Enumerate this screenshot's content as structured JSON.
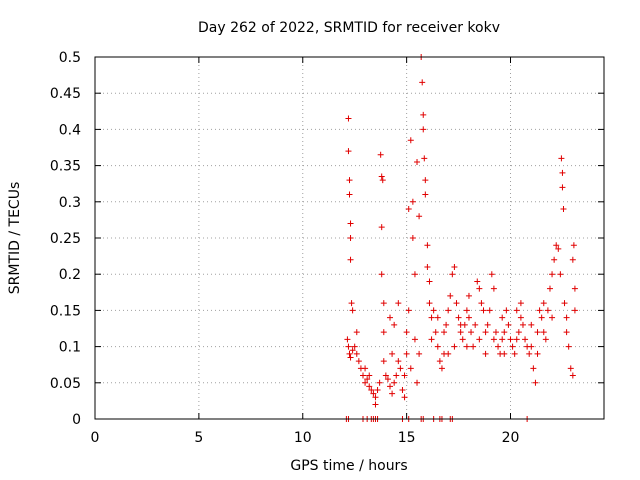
{
  "chart_data": {
    "type": "scatter",
    "title": "Day 262 of 2022, SRMTID for receiver kokv",
    "xlabel": "GPS time / hours",
    "ylabel": "SRMTID / TECUs",
    "xlim": [
      0,
      24.5
    ],
    "ylim": [
      0,
      0.5
    ],
    "x_ticks": [
      0,
      5,
      10,
      15,
      20
    ],
    "x_tick_labels": [
      "0",
      "5",
      "10",
      "15",
      "20"
    ],
    "y_ticks": [
      0,
      0.05,
      0.1,
      0.15,
      0.2,
      0.25,
      0.3,
      0.35,
      0.4,
      0.45,
      0.5
    ],
    "y_tick_labels": [
      "0",
      "0.05",
      "0.1",
      "0.15",
      "0.2",
      "0.25",
      "0.3",
      "0.35",
      "0.4",
      "0.45",
      "0.5"
    ],
    "grid": true,
    "marker": "+",
    "color": "#e00000",
    "series": [
      {
        "name": "SRMTID",
        "points": [
          [
            12.1,
            0.0
          ],
          [
            12.2,
            0.0
          ],
          [
            12.9,
            0.0
          ],
          [
            13.1,
            0.0
          ],
          [
            13.3,
            0.0
          ],
          [
            13.4,
            0.0
          ],
          [
            13.5,
            0.0
          ],
          [
            13.6,
            0.0
          ],
          [
            14.8,
            0.0
          ],
          [
            15.1,
            0.0
          ],
          [
            15.7,
            0.0
          ],
          [
            15.8,
            0.0
          ],
          [
            16.3,
            0.0
          ],
          [
            16.6,
            0.0
          ],
          [
            16.7,
            0.0
          ],
          [
            17.1,
            0.0
          ],
          [
            17.2,
            0.0
          ],
          [
            20.8,
            0.0
          ],
          [
            12.2,
            0.415
          ],
          [
            12.2,
            0.37
          ],
          [
            12.25,
            0.33
          ],
          [
            12.25,
            0.31
          ],
          [
            12.3,
            0.27
          ],
          [
            12.3,
            0.25
          ],
          [
            12.3,
            0.22
          ],
          [
            12.35,
            0.16
          ],
          [
            12.4,
            0.15
          ],
          [
            12.15,
            0.11
          ],
          [
            12.2,
            0.1
          ],
          [
            12.25,
            0.09
          ],
          [
            12.3,
            0.085
          ],
          [
            12.4,
            0.095
          ],
          [
            12.5,
            0.1
          ],
          [
            12.6,
            0.09
          ],
          [
            12.7,
            0.08
          ],
          [
            12.8,
            0.07
          ],
          [
            12.9,
            0.06
          ],
          [
            13.0,
            0.05
          ],
          [
            13.1,
            0.055
          ],
          [
            13.2,
            0.045
          ],
          [
            13.3,
            0.04
          ],
          [
            13.4,
            0.035
          ],
          [
            13.5,
            0.03
          ],
          [
            13.6,
            0.04
          ],
          [
            13.7,
            0.05
          ],
          [
            13.75,
            0.365
          ],
          [
            13.8,
            0.335
          ],
          [
            13.85,
            0.33
          ],
          [
            13.8,
            0.265
          ],
          [
            13.8,
            0.2
          ],
          [
            13.9,
            0.16
          ],
          [
            13.9,
            0.12
          ],
          [
            14.0,
            0.06
          ],
          [
            14.1,
            0.055
          ],
          [
            14.2,
            0.045
          ],
          [
            14.3,
            0.035
          ],
          [
            14.4,
            0.05
          ],
          [
            14.5,
            0.06
          ],
          [
            14.6,
            0.08
          ],
          [
            14.7,
            0.07
          ],
          [
            14.8,
            0.04
          ],
          [
            14.9,
            0.03
          ],
          [
            15.0,
            0.09
          ],
          [
            15.0,
            0.12
          ],
          [
            15.1,
            0.15
          ],
          [
            15.1,
            0.29
          ],
          [
            15.2,
            0.385
          ],
          [
            15.3,
            0.3
          ],
          [
            15.3,
            0.25
          ],
          [
            15.4,
            0.2
          ],
          [
            15.5,
            0.355
          ],
          [
            15.6,
            0.28
          ],
          [
            15.7,
            0.5
          ],
          [
            15.75,
            0.465
          ],
          [
            15.8,
            0.42
          ],
          [
            15.8,
            0.4
          ],
          [
            15.85,
            0.36
          ],
          [
            15.9,
            0.33
          ],
          [
            15.9,
            0.31
          ],
          [
            16.0,
            0.24
          ],
          [
            16.0,
            0.21
          ],
          [
            16.1,
            0.19
          ],
          [
            16.1,
            0.16
          ],
          [
            16.2,
            0.14
          ],
          [
            16.3,
            0.15
          ],
          [
            16.4,
            0.12
          ],
          [
            16.5,
            0.1
          ],
          [
            16.6,
            0.08
          ],
          [
            16.7,
            0.07
          ],
          [
            16.8,
            0.12
          ],
          [
            16.9,
            0.13
          ],
          [
            17.0,
            0.15
          ],
          [
            17.1,
            0.17
          ],
          [
            17.2,
            0.2
          ],
          [
            17.3,
            0.21
          ],
          [
            17.4,
            0.16
          ],
          [
            17.5,
            0.14
          ],
          [
            17.6,
            0.12
          ],
          [
            17.7,
            0.11
          ],
          [
            17.8,
            0.13
          ],
          [
            17.9,
            0.15
          ],
          [
            18.0,
            0.14
          ],
          [
            18.1,
            0.12
          ],
          [
            18.2,
            0.1
          ],
          [
            18.3,
            0.13
          ],
          [
            18.4,
            0.19
          ],
          [
            18.5,
            0.18
          ],
          [
            18.6,
            0.16
          ],
          [
            18.7,
            0.15
          ],
          [
            18.8,
            0.12
          ],
          [
            18.9,
            0.13
          ],
          [
            19.0,
            0.15
          ],
          [
            19.1,
            0.2
          ],
          [
            19.2,
            0.18
          ],
          [
            19.3,
            0.12
          ],
          [
            19.4,
            0.1
          ],
          [
            19.5,
            0.09
          ],
          [
            19.6,
            0.11
          ],
          [
            19.7,
            0.12
          ],
          [
            19.8,
            0.15
          ],
          [
            19.9,
            0.13
          ],
          [
            20.0,
            0.11
          ],
          [
            20.1,
            0.1
          ],
          [
            20.2,
            0.09
          ],
          [
            20.3,
            0.11
          ],
          [
            20.4,
            0.12
          ],
          [
            20.5,
            0.14
          ],
          [
            20.6,
            0.13
          ],
          [
            20.7,
            0.11
          ],
          [
            20.8,
            0.1
          ],
          [
            20.9,
            0.09
          ],
          [
            21.0,
            0.1
          ],
          [
            21.1,
            0.07
          ],
          [
            21.2,
            0.05
          ],
          [
            21.3,
            0.12
          ],
          [
            21.4,
            0.15
          ],
          [
            21.5,
            0.14
          ],
          [
            21.6,
            0.12
          ],
          [
            21.7,
            0.11
          ],
          [
            21.8,
            0.15
          ],
          [
            21.9,
            0.18
          ],
          [
            22.0,
            0.2
          ],
          [
            22.1,
            0.22
          ],
          [
            22.2,
            0.24
          ],
          [
            22.3,
            0.235
          ],
          [
            22.4,
            0.2
          ],
          [
            22.45,
            0.36
          ],
          [
            22.5,
            0.34
          ],
          [
            22.5,
            0.32
          ],
          [
            22.55,
            0.29
          ],
          [
            22.6,
            0.16
          ],
          [
            22.7,
            0.12
          ],
          [
            22.8,
            0.1
          ],
          [
            22.9,
            0.07
          ],
          [
            23.0,
            0.06
          ],
          [
            23.0,
            0.22
          ],
          [
            23.05,
            0.24
          ],
          [
            23.1,
            0.18
          ],
          [
            23.1,
            0.15
          ],
          [
            14.2,
            0.14
          ],
          [
            14.4,
            0.13
          ],
          [
            14.6,
            0.16
          ],
          [
            15.4,
            0.11
          ],
          [
            15.6,
            0.09
          ],
          [
            16.2,
            0.11
          ],
          [
            16.5,
            0.14
          ],
          [
            17.0,
            0.09
          ],
          [
            17.3,
            0.1
          ],
          [
            17.6,
            0.13
          ],
          [
            18.0,
            0.17
          ],
          [
            18.5,
            0.11
          ],
          [
            19.2,
            0.11
          ],
          [
            19.7,
            0.09
          ],
          [
            20.5,
            0.16
          ],
          [
            21.0,
            0.13
          ],
          [
            21.6,
            0.16
          ],
          [
            22.0,
            0.14
          ],
          [
            12.6,
            0.12
          ],
          [
            13.0,
            0.07
          ],
          [
            13.2,
            0.06
          ],
          [
            13.5,
            0.02
          ],
          [
            13.9,
            0.08
          ],
          [
            14.3,
            0.09
          ],
          [
            14.9,
            0.06
          ],
          [
            15.2,
            0.07
          ],
          [
            15.5,
            0.05
          ],
          [
            16.8,
            0.09
          ],
          [
            17.9,
            0.1
          ],
          [
            18.8,
            0.09
          ],
          [
            19.6,
            0.14
          ],
          [
            20.3,
            0.15
          ],
          [
            21.3,
            0.09
          ],
          [
            22.7,
            0.14
          ]
        ]
      }
    ]
  }
}
